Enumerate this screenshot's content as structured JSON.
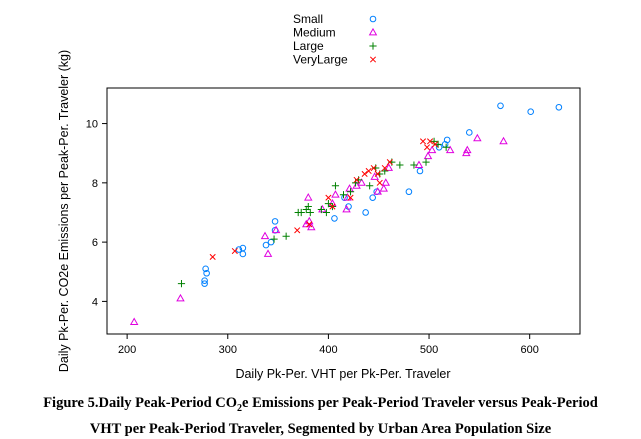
{
  "chart_data": {
    "type": "scatter",
    "xlabel": "Daily Pk-Per. VHT per Pk-Per. Traveler",
    "ylabel": "Daily Pk-Per. CO2e Emissions per Peak-Per. Traveler (kg)",
    "xlim": [
      180,
      650
    ],
    "ylim": [
      2.9,
      11.2
    ],
    "xticks": [
      200,
      300,
      400,
      500,
      600
    ],
    "yticks": [
      4,
      6,
      8,
      10
    ],
    "grid": false,
    "legend_position": "top-center",
    "series": [
      {
        "name": "Small",
        "marker": "circle",
        "color": "#0080ff",
        "points": [
          [
            277,
            4.6
          ],
          [
            277,
            4.7
          ],
          [
            279,
            4.95
          ],
          [
            278,
            5.1
          ],
          [
            311,
            5.75
          ],
          [
            315,
            5.8
          ],
          [
            315,
            5.6
          ],
          [
            338,
            5.9
          ],
          [
            343,
            6.0
          ],
          [
            347,
            6.7
          ],
          [
            347,
            6.4
          ],
          [
            406,
            6.8
          ],
          [
            416,
            7.5
          ],
          [
            420,
            7.2
          ],
          [
            437,
            7.0
          ],
          [
            444,
            7.5
          ],
          [
            448,
            7.7
          ],
          [
            480,
            7.7
          ],
          [
            491,
            8.4
          ],
          [
            510,
            9.2
          ],
          [
            516,
            9.3
          ],
          [
            518,
            9.45
          ],
          [
            540,
            9.7
          ],
          [
            571,
            10.6
          ],
          [
            601,
            10.4
          ],
          [
            629,
            10.55
          ]
        ]
      },
      {
        "name": "Medium",
        "marker": "triangle",
        "color": "#e000e0",
        "points": [
          [
            207,
            3.3
          ],
          [
            253,
            4.1
          ],
          [
            337,
            6.2
          ],
          [
            340,
            5.6
          ],
          [
            348,
            6.4
          ],
          [
            378,
            6.6
          ],
          [
            380,
            7.5
          ],
          [
            381,
            6.7
          ],
          [
            383,
            6.5
          ],
          [
            394,
            7.1
          ],
          [
            404,
            7.3
          ],
          [
            407,
            7.6
          ],
          [
            418,
            7.1
          ],
          [
            419,
            7.5
          ],
          [
            421,
            7.8
          ],
          [
            428,
            7.9
          ],
          [
            433,
            8.0
          ],
          [
            446,
            8.2
          ],
          [
            449,
            7.7
          ],
          [
            455,
            7.8
          ],
          [
            457,
            8.0
          ],
          [
            460,
            8.5
          ],
          [
            490,
            8.6
          ],
          [
            499,
            8.9
          ],
          [
            503,
            9.1
          ],
          [
            521,
            9.1
          ],
          [
            537,
            9.0
          ],
          [
            538,
            9.1
          ],
          [
            548,
            9.5
          ],
          [
            574,
            9.4
          ]
        ]
      },
      {
        "name": "Large",
        "marker": "plus",
        "color": "#008000",
        "points": [
          [
            254,
            4.6
          ],
          [
            346,
            6.1
          ],
          [
            358,
            6.2
          ],
          [
            370,
            7.0
          ],
          [
            373,
            7.0
          ],
          [
            378,
            7.1
          ],
          [
            380,
            7.2
          ],
          [
            382,
            7.0
          ],
          [
            393,
            7.1
          ],
          [
            398,
            7.0
          ],
          [
            400,
            7.3
          ],
          [
            404,
            7.2
          ],
          [
            407,
            7.9
          ],
          [
            415,
            7.6
          ],
          [
            422,
            7.7
          ],
          [
            427,
            8.0
          ],
          [
            430,
            8.1
          ],
          [
            441,
            7.9
          ],
          [
            447,
            8.5
          ],
          [
            451,
            8.3
          ],
          [
            456,
            8.4
          ],
          [
            463,
            8.7
          ],
          [
            471,
            8.6
          ],
          [
            485,
            8.6
          ],
          [
            497,
            8.7
          ],
          [
            505,
            9.4
          ],
          [
            509,
            9.3
          ],
          [
            517,
            9.2
          ]
        ]
      },
      {
        "name": "VeryLarge",
        "marker": "x",
        "color": "#ff0000",
        "points": [
          [
            285,
            5.5
          ],
          [
            307,
            5.7
          ],
          [
            369,
            6.4
          ],
          [
            381,
            6.6
          ],
          [
            400,
            7.5
          ],
          [
            404,
            7.2
          ],
          [
            422,
            7.5
          ],
          [
            428,
            8.1
          ],
          [
            436,
            8.3
          ],
          [
            440,
            8.4
          ],
          [
            445,
            8.5
          ],
          [
            449,
            8.3
          ],
          [
            451,
            8.0
          ],
          [
            456,
            8.5
          ],
          [
            461,
            8.7
          ],
          [
            494,
            9.4
          ],
          [
            498,
            9.2
          ],
          [
            501,
            9.4
          ],
          [
            506,
            9.3
          ]
        ]
      }
    ]
  },
  "caption": {
    "line1_a": "Figure 5.Daily Peak-Period CO",
    "line1_sub": "2",
    "line1_b": "e Emissions per Peak-Period Traveler versus Peak-Period",
    "line2": "VHT per Peak-Period Traveler, Segmented by Urban Area Population Size"
  }
}
